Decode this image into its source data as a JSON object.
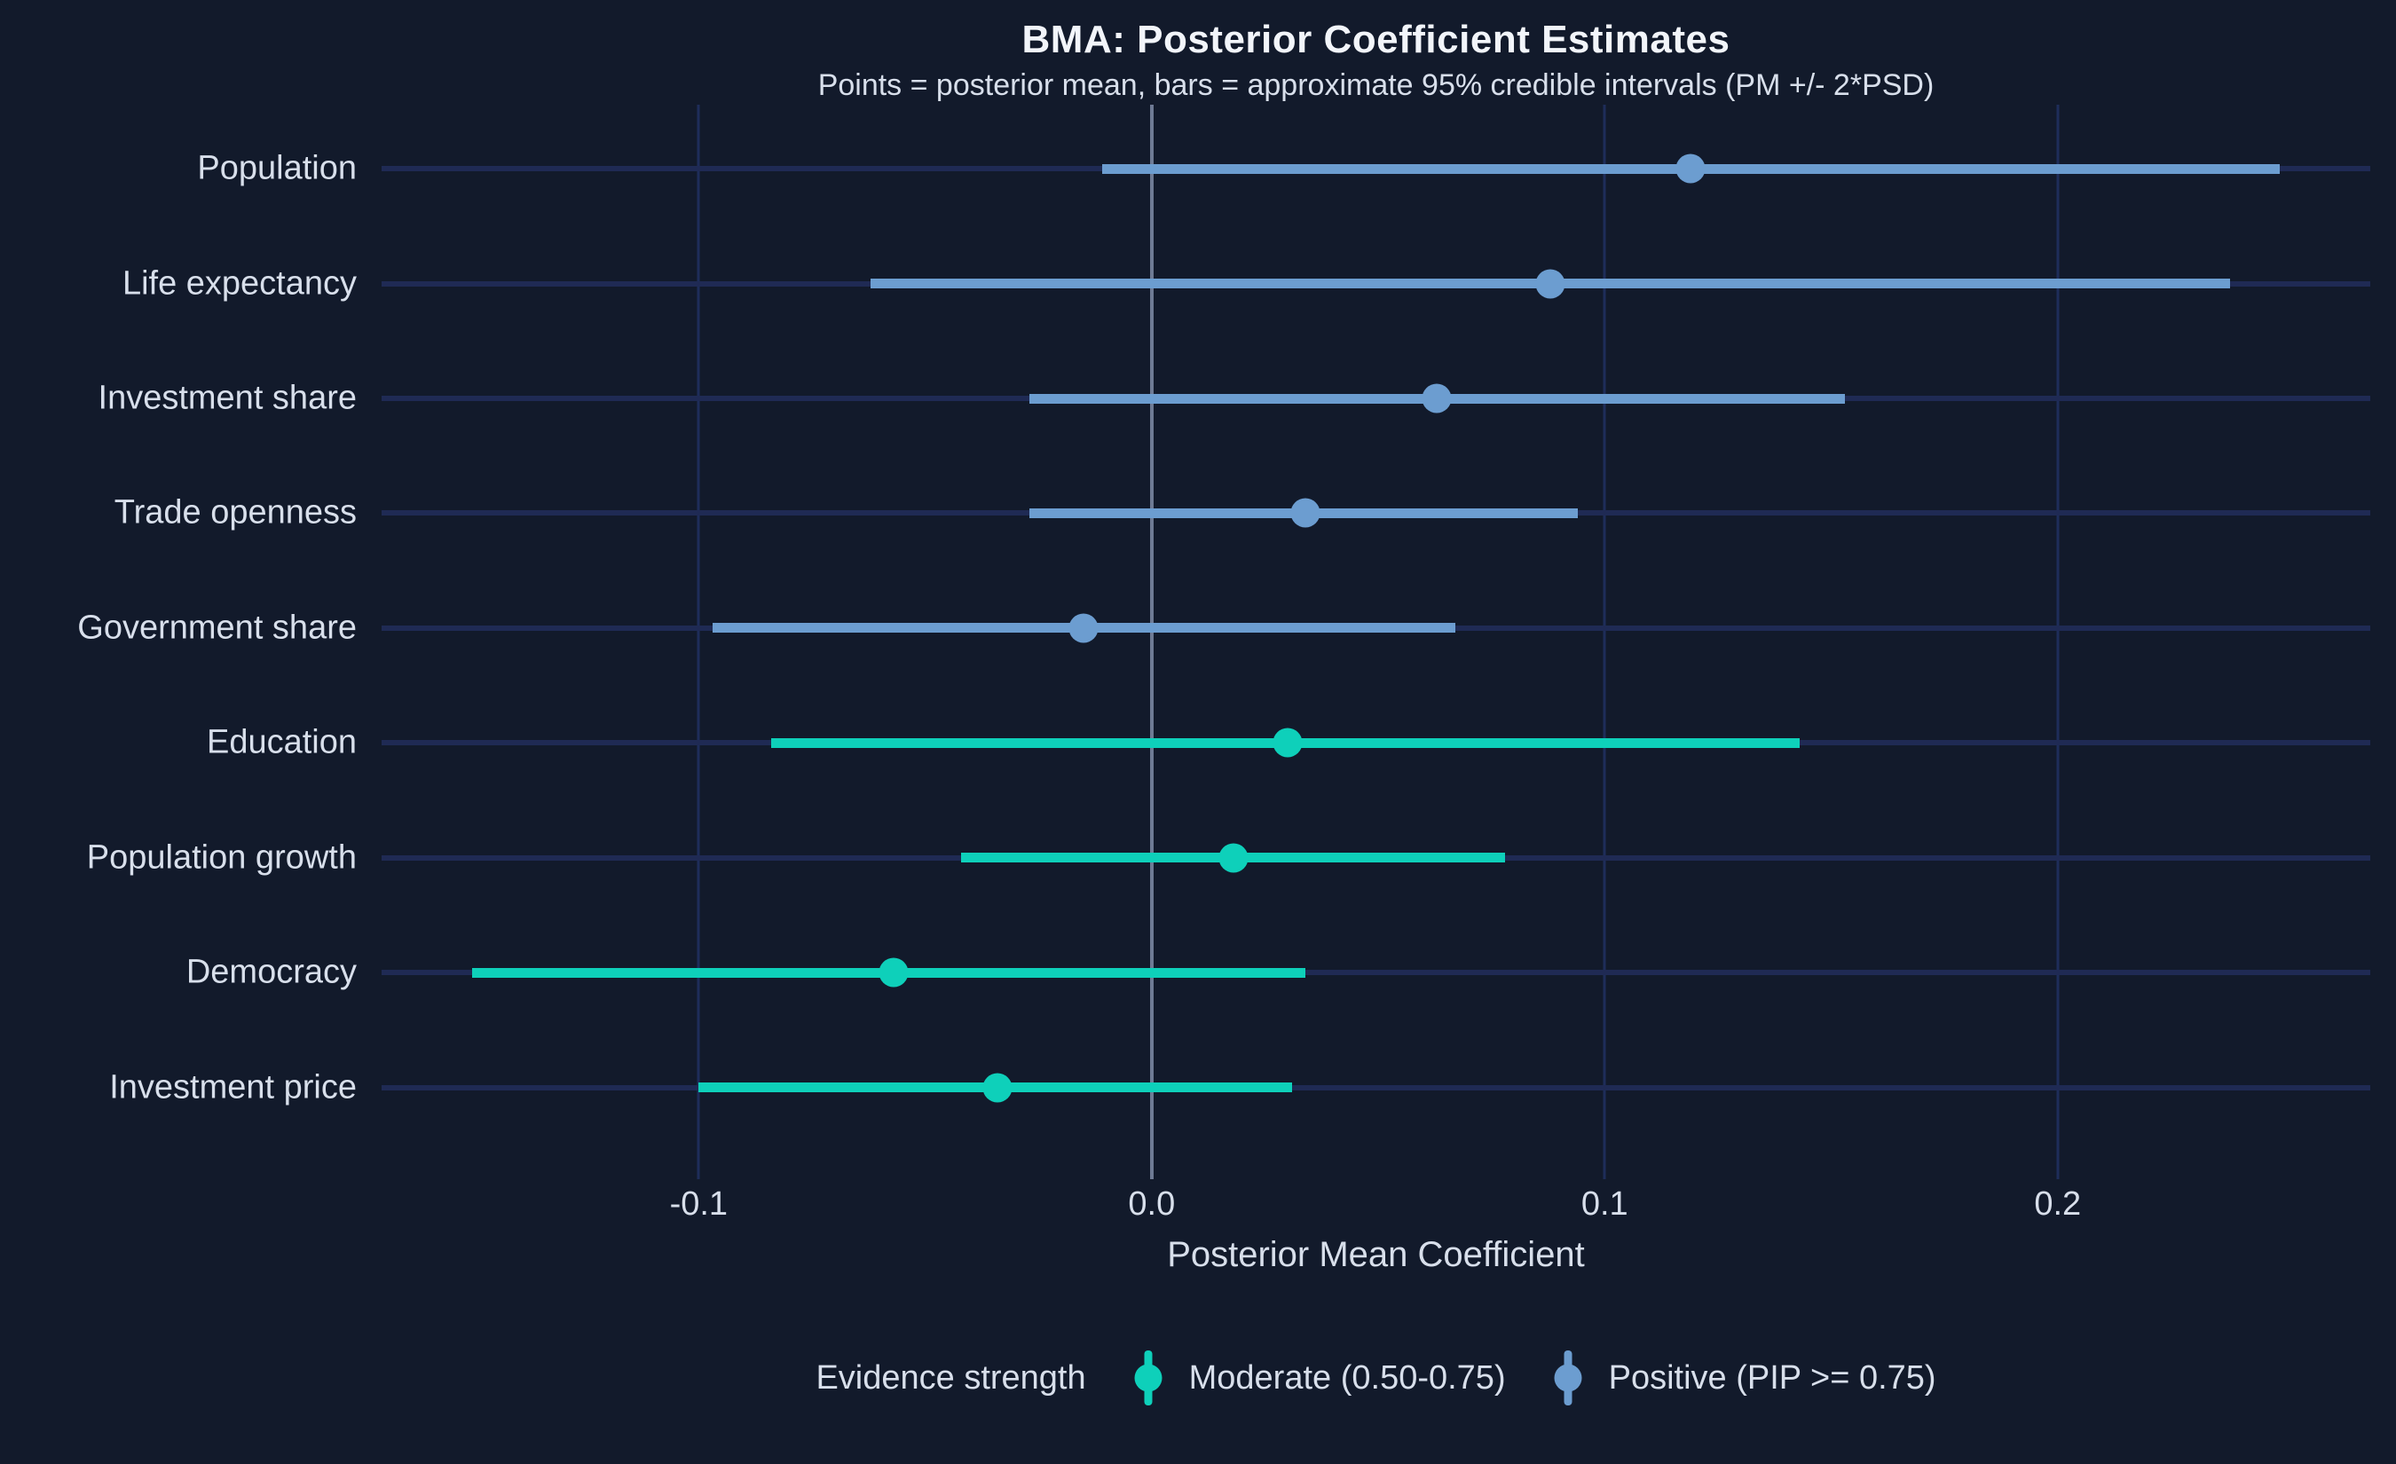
{
  "figure": {
    "title": "BMA: Posterior Coefficient Estimates",
    "subtitle": "Points = posterior mean, bars = approximate 95% credible intervals (PM +/- 2*PSD)"
  },
  "axis": {
    "x_label": "Posterior Mean Coefficient"
  },
  "legend": {
    "title": "Evidence strength",
    "items": [
      {
        "label": "Moderate (0.50-0.75)",
        "color": "#0ed0ba"
      },
      {
        "label": "Positive (PIP >= 0.75)",
        "color": "#6c9dd0"
      }
    ]
  },
  "colors": {
    "background": "#121a2b",
    "grid": "#1e2d5a",
    "row_line": "#1f2a54",
    "zero_line": "#6e7a94",
    "text": "#d8dfeb",
    "title_text": "#f2f5fa",
    "moderate": "#0ed0ba",
    "positive": "#6c9dd0"
  },
  "chart_data": {
    "type": "scatter",
    "subtype": "pointrange-forest-plot",
    "title": "BMA: Posterior Coefficient Estimates",
    "subtitle": "Points = posterior mean, bars = approximate 95% credible intervals (PM +/- 2*PSD)",
    "xlabel": "Posterior Mean Coefficient",
    "ylabel": "",
    "xlim": [
      -0.17,
      0.269
    ],
    "xticks": [
      -0.1,
      0,
      0.1,
      0.2
    ],
    "xtick_labels": [
      "-0.1",
      "0.0",
      "0.1",
      "0.2"
    ],
    "grid": "on",
    "legend_position": "bottom",
    "categories": [
      "Population",
      "Life expectancy",
      "Investment share",
      "Trade openness",
      "Government share",
      "Education",
      "Population growth",
      "Democracy",
      "Investment price"
    ],
    "series": [
      {
        "name": "Positive (PIP >= 0.75)",
        "color": "#6c9dd0",
        "points": [
          {
            "category": "Population",
            "mean": 0.119,
            "lower": -0.011,
            "upper": 0.249
          },
          {
            "category": "Life expectancy",
            "mean": 0.088,
            "lower": -0.062,
            "upper": 0.238
          },
          {
            "category": "Investment share",
            "mean": 0.063,
            "lower": -0.027,
            "upper": 0.153
          },
          {
            "category": "Trade openness",
            "mean": 0.034,
            "lower": -0.027,
            "upper": 0.094
          },
          {
            "category": "Government share",
            "mean": -0.015,
            "lower": -0.097,
            "upper": 0.067
          }
        ]
      },
      {
        "name": "Moderate (0.50-0.75)",
        "color": "#0ed0ba",
        "points": [
          {
            "category": "Education",
            "mean": 0.03,
            "lower": -0.084,
            "upper": 0.143
          },
          {
            "category": "Population growth",
            "mean": 0.018,
            "lower": -0.042,
            "upper": 0.078
          },
          {
            "category": "Democracy",
            "mean": -0.057,
            "lower": -0.15,
            "upper": 0.034
          },
          {
            "category": "Investment price",
            "mean": -0.034,
            "lower": -0.1,
            "upper": 0.031
          }
        ]
      }
    ]
  }
}
